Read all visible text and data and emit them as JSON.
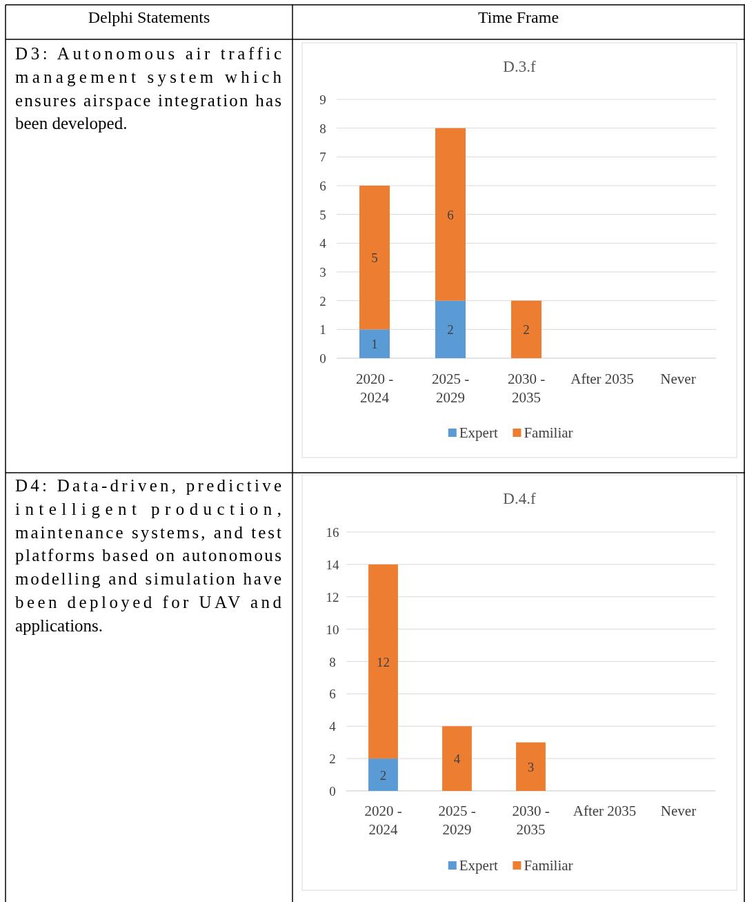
{
  "chart_data": [
    {
      "type": "other",
      "annotations": [
        "Delphi Statements",
        "Time Frame"
      ]
    },
    {
      "type": "other",
      "annotations": [
        "D3: Autonomous air traffic",
        "management system which",
        "ensures airspace integration has",
        "been developed."
      ]
    },
    {
      "type": "bar",
      "title": "D.3.f",
      "categories": [
        "2020 - 2024",
        "2025 - 2029",
        "2030 - 2035",
        "After 2035",
        "Never"
      ],
      "stacked": true,
      "data_labels": true,
      "grid": "y",
      "legend": "bottom",
      "ylim": [
        0,
        9
      ],
      "yticks": [
        0,
        1,
        2,
        3,
        4,
        5,
        6,
        7,
        8,
        9
      ],
      "series": [
        {
          "name": "Expert",
          "color": "#5b9bd5",
          "values": [
            1,
            2,
            null,
            null,
            null
          ]
        },
        {
          "name": "Familiar",
          "color": "#ed7d31",
          "values": [
            5,
            6,
            2,
            null,
            null
          ]
        }
      ]
    },
    {
      "type": "other",
      "annotations": [
        "D4: Data-driven, predictive",
        "intelligent production,",
        "maintenance systems, and test",
        "platforms based on autonomous",
        "modelling and simulation have",
        "been deployed for UAV and",
        "applications."
      ]
    },
    {
      "type": "bar",
      "title": "D.4.f",
      "categories": [
        "2020 - 2024",
        "2025 - 2029",
        "2030 - 2035",
        "After 2035",
        "Never"
      ],
      "stacked": true,
      "data_labels": true,
      "grid": "y",
      "legend": "bottom",
      "ylim": [
        0,
        16
      ],
      "yticks": [
        0,
        2,
        4,
        6,
        8,
        10,
        12,
        14,
        16
      ],
      "series": [
        {
          "name": "Expert",
          "color": "#5b9bd5",
          "values": [
            2,
            null,
            null,
            null,
            null
          ]
        },
        {
          "name": "Familiar",
          "color": "#ed7d31",
          "values": [
            12,
            4,
            3,
            null,
            null
          ]
        }
      ]
    }
  ]
}
